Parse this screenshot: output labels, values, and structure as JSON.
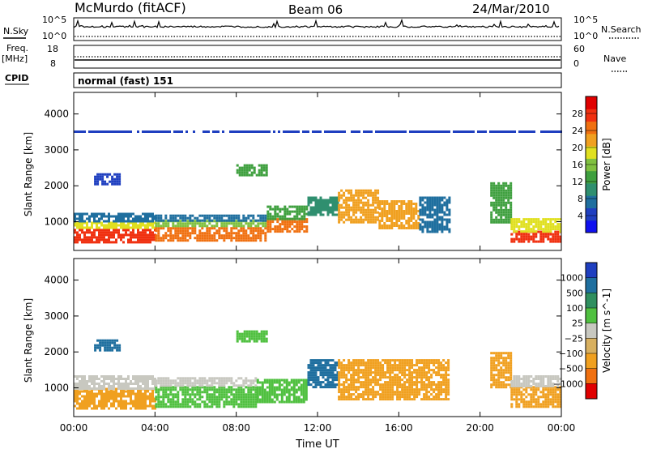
{
  "header": {
    "station": "McMurdo (fitACF)",
    "beam": "Beam 06",
    "date": "24/Mar/2010"
  },
  "status_panel": {
    "left_label_sky": "N.Sky",
    "left_tick_top": "10^5",
    "left_tick_bottom": "10^0",
    "right_label_search": "N.Search",
    "right_tick_top": "10^5",
    "right_tick_bottom": "10^0",
    "freq_label": "Freq.",
    "freq_unit": "[MHz]",
    "freq_tick_top": "18",
    "freq_tick_bottom": "8",
    "nave_label": "Nave",
    "nave_tick_top": "60",
    "nave_tick_bottom": "0",
    "cpid_label": "CPID",
    "cpid_value": "normal (fast) 151"
  },
  "colors": {
    "power": [
      "#1010f0",
      "#1f3fc0",
      "#1f6f9f",
      "#2f8f6f",
      "#3fa03f",
      "#80c040",
      "#e0e020",
      "#f0a020",
      "#f07010",
      "#f03010",
      "#e00000"
    ],
    "velocity": [
      "#1f3fc0",
      "#1f6f9f",
      "#2f8f5f",
      "#50c040",
      "#c8c8c0",
      "#d8b060",
      "#f0a020",
      "#f07010",
      "#e00000"
    ]
  },
  "chart_data": [
    {
      "type": "heatmap",
      "name": "power",
      "ylabel": "Slant Range [km]",
      "yticks": [
        "1000",
        "2000",
        "3000",
        "4000"
      ],
      "xticks": [
        "00:00",
        "04:00",
        "08:00",
        "12:00",
        "16:00",
        "20:00",
        "00:00"
      ],
      "ylim": [
        200,
        4600
      ],
      "xlim_hours": [
        0,
        24
      ],
      "colorbar": {
        "label": "Power [dB]",
        "ticks": [
          "4",
          "8",
          "12",
          "16",
          "20",
          "24",
          "28"
        ],
        "range": [
          0,
          32
        ]
      },
      "regions": [
        {
          "t0": 0.0,
          "t1": 4.0,
          "r0": 450,
          "r1": 800,
          "v": 29
        },
        {
          "t0": 0.0,
          "t1": 4.0,
          "r0": 800,
          "r1": 1000,
          "v": 20
        },
        {
          "t0": 0.0,
          "t1": 4.0,
          "r0": 1000,
          "r1": 1250,
          "v": 7
        },
        {
          "t0": 4.0,
          "t1": 9.5,
          "r0": 450,
          "r1": 850,
          "v": 26
        },
        {
          "t0": 4.0,
          "t1": 9.5,
          "r0": 850,
          "r1": 1050,
          "v": 15
        },
        {
          "t0": 4.0,
          "t1": 9.5,
          "r0": 1050,
          "r1": 1200,
          "v": 6
        },
        {
          "t0": 9.5,
          "t1": 11.5,
          "r0": 700,
          "r1": 1100,
          "v": 26
        },
        {
          "t0": 9.5,
          "t1": 11.5,
          "r0": 1100,
          "r1": 1450,
          "v": 13
        },
        {
          "t0": 11.5,
          "t1": 13.0,
          "r0": 1200,
          "r1": 1700,
          "v": 10
        },
        {
          "t0": 13.0,
          "t1": 15.0,
          "r0": 1000,
          "r1": 1900,
          "v": 22
        },
        {
          "t0": 15.0,
          "t1": 17.0,
          "r0": 800,
          "r1": 1600,
          "v": 21
        },
        {
          "t0": 17.0,
          "t1": 18.5,
          "r0": 700,
          "r1": 1700,
          "v": 7
        },
        {
          "t0": 20.5,
          "t1": 21.5,
          "r0": 1000,
          "r1": 2100,
          "v": 14
        },
        {
          "t0": 21.5,
          "t1": 24.0,
          "r0": 450,
          "r1": 750,
          "v": 29
        },
        {
          "t0": 21.5,
          "t1": 24.0,
          "r0": 750,
          "r1": 1100,
          "v": 18
        },
        {
          "t0": 1.0,
          "t1": 2.2,
          "r0": 2050,
          "r1": 2350,
          "v": 5
        },
        {
          "t0": 8.0,
          "t1": 9.5,
          "r0": 2300,
          "r1": 2600,
          "v": 13
        },
        {
          "t0": 0.0,
          "t1": 24.0,
          "r0": 3480,
          "r1": 3540,
          "v": 5
        }
      ]
    },
    {
      "type": "heatmap",
      "name": "velocity",
      "ylabel": "Slant Range [km]",
      "yticks": [
        "1000",
        "2000",
        "3000",
        "4000"
      ],
      "xticks": [
        "00:00",
        "04:00",
        "08:00",
        "12:00",
        "16:00",
        "20:00",
        "00:00"
      ],
      "xlabel": "Time UT",
      "ylim": [
        200,
        4600
      ],
      "xlim_hours": [
        0,
        24
      ],
      "colorbar": {
        "label": "Velocity [m s^-1]",
        "ticks": [
          "1000",
          "500",
          "100",
          "25",
          "−25",
          "−100",
          "−500",
          "−1000"
        ]
      },
      "regions": [
        {
          "t0": 0.0,
          "t1": 4.0,
          "r0": 450,
          "r1": 1000,
          "v": -150
        },
        {
          "t0": 0.0,
          "t1": 4.0,
          "r0": 1000,
          "r1": 1350,
          "v": 0
        },
        {
          "t0": 4.0,
          "t1": 9.0,
          "r0": 450,
          "r1": 1050,
          "v": 60
        },
        {
          "t0": 4.0,
          "t1": 9.0,
          "r0": 1050,
          "r1": 1300,
          "v": 0
        },
        {
          "t0": 9.0,
          "t1": 11.5,
          "r0": 600,
          "r1": 1250,
          "v": 60
        },
        {
          "t0": 11.5,
          "t1": 13.0,
          "r0": 1000,
          "r1": 1800,
          "v": 150
        },
        {
          "t0": 13.0,
          "t1": 18.5,
          "r0": 700,
          "r1": 1800,
          "v": -150
        },
        {
          "t0": 20.5,
          "t1": 21.5,
          "r0": 1000,
          "r1": 2000,
          "v": -150
        },
        {
          "t0": 21.5,
          "t1": 24.0,
          "r0": 450,
          "r1": 1050,
          "v": -100
        },
        {
          "t0": 21.5,
          "t1": 24.0,
          "r0": 1050,
          "r1": 1350,
          "v": 0
        },
        {
          "t0": 8.0,
          "t1": 9.5,
          "r0": 2300,
          "r1": 2600,
          "v": 60
        },
        {
          "t0": 1.0,
          "t1": 2.2,
          "r0": 2050,
          "r1": 2350,
          "v": 200
        }
      ]
    }
  ]
}
